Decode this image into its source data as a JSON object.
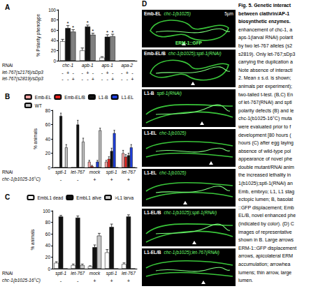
{
  "chart_data": [
    {
      "panel": "A",
      "type": "bar",
      "y_label": "% Polarity phenotype",
      "category_label": "RNAi",
      "categories": [
        "chc-1",
        "apb-1",
        "aps-1",
        "apa-2"
      ],
      "series": [
        {
          "color": "#ffffff",
          "values": [
            38,
            20,
            6,
            0
          ],
          "errors": [
            4,
            5,
            2,
            0
          ],
          "annotations": [
            null,
            null,
            null,
            null
          ]
        },
        {
          "color": "#111111",
          "values": [
            64,
            67,
            47,
            0
          ],
          "errors": [
            5,
            3,
            4,
            0
          ],
          "annotations": [
            "*",
            "*",
            "*",
            null
          ]
        },
        {
          "color": "#7f7f7f",
          "values": [
            57,
            51,
            48,
            0
          ],
          "errors": [
            4,
            3,
            4,
            0
          ],
          "annotations": [
            "*",
            "*",
            "*",
            null
          ]
        }
      ],
      "rows": [
        {
          "label": "let-767(s2176)/sDp3",
          "series_marks": [
            "-",
            "+",
            "-"
          ]
        },
        {
          "label": "let-767(s2819)/sDp3",
          "series_marks": [
            "-",
            "-",
            "+"
          ]
        }
      ],
      "ylim": [
        0,
        100
      ],
      "yticks": [
        0,
        20,
        40,
        60,
        80,
        100
      ],
      "grid": false
    },
    {
      "panel": "B",
      "type": "bar",
      "y_label": "% animals",
      "category_label": "RNAi",
      "categories": [
        "sptl-1",
        "let-767",
        "mock",
        "sptl-1",
        "let-767"
      ],
      "series": [
        {
          "name": "Emb-EL",
          "color": "#f4a3a3",
          "values": [
            0,
            0,
            8,
            8,
            20
          ],
          "errors": [
            0,
            0,
            2,
            2,
            4
          ]
        },
        {
          "name": "Emb-EL/B",
          "color": "#e3231f",
          "values": [
            0,
            0,
            2,
            12,
            15
          ],
          "errors": [
            0,
            0,
            1,
            3,
            3
          ]
        },
        {
          "name": "L1-B",
          "color": "#111111",
          "values": [
            72,
            60,
            0,
            23,
            17
          ],
          "errors": [
            4,
            6,
            0,
            4,
            3
          ]
        },
        {
          "name": "L1-EL",
          "color": "#1f3fdc",
          "values": [
            0,
            0,
            8,
            48,
            28
          ],
          "errors": [
            0,
            0,
            2,
            4,
            4
          ]
        },
        {
          "name": "WT",
          "color": "#bdbdbd",
          "values": [
            28,
            36,
            52,
            0,
            0
          ],
          "errors": [
            4,
            5,
            3,
            0,
            0
          ]
        }
      ],
      "rows": [
        {
          "label": "chc-1(b1025-16°C)",
          "category_marks": [
            "-",
            "-",
            "+",
            "+",
            "+"
          ]
        }
      ],
      "legend": "top-right",
      "ylim": [
        0,
        80
      ],
      "yticks": [
        0,
        20,
        40,
        60,
        80
      ],
      "grid": false
    },
    {
      "panel": "C",
      "type": "bar",
      "y_label": "% animals",
      "category_label": "RNAi",
      "categories": [
        "sptl-1",
        "let-767",
        "mock",
        "sptl-1",
        "let-767"
      ],
      "series": [
        {
          "name": "EmbL1 dead",
          "color": "#ffffff",
          "values": [
            10,
            6,
            4,
            28,
            8
          ],
          "errors": [
            2,
            2,
            1,
            5,
            2
          ]
        },
        {
          "name": "EmbL1 alive",
          "color": "#111111",
          "values": [
            90,
            88,
            37,
            72,
            90
          ],
          "errors": [
            2,
            3,
            4,
            5,
            3
          ]
        },
        {
          "name": ">L1 larva",
          "color": "#c8c8c8",
          "values": [
            0,
            6,
            57,
            0,
            0
          ],
          "errors": [
            0,
            2,
            4,
            0,
            0
          ]
        }
      ],
      "rows": [
        {
          "label": "chc-1(b1025-16°C)",
          "category_marks": [
            "-",
            "-",
            "+",
            "+",
            "+"
          ]
        }
      ],
      "legend": "top-right",
      "ylim": [
        0,
        100
      ],
      "yticks": [
        0,
        20,
        40,
        60,
        80,
        100
      ],
      "grid": false
    }
  ],
  "panel_d": {
    "panel": "D",
    "stain": "ERM-1::GFP",
    "scale": "5µm",
    "images": [
      {
        "label": "Emb-EL",
        "genotype": "chc-1(b1025)"
      },
      {
        "label": "Emb-EL/B",
        "genotype": "chc-1(b1025);sptl-1(RNAi)"
      },
      {
        "label": "L1-B",
        "genotype": "sptl-1(RNAi)"
      },
      {
        "label": "L1-EL",
        "genotype": "chc-1(b1025)"
      },
      {
        "label": "L1-EL",
        "genotype": "chc-1(b1025)"
      },
      {
        "label": "L1-EL/B",
        "genotype": "chc-1(b1025);sptl-1(RNAi)"
      },
      {
        "label": "L1-EL/B",
        "genotype": "chc-1(b1025);let-767(RNAi)"
      }
    ]
  },
  "caption": {
    "heading": [
      "Fig. 5. Genetic interact",
      "between clathrin/AP-1",
      "biosynthetic enzymes."
    ],
    "body": [
      "enhancement of chc-1, a",
      "aps-1(larval RNAi) polarit",
      "by two let-767 alleles (s2",
      "s2819). Only let-767;sDp3",
      "carrying the duplication a",
      "Note absence of interacti",
      "2. Mean ± s.d. is shown;",
      "animals per experiment);",
      "two-tailed t-test. (B,C) En",
      "of let-767(RNAi) and sptl",
      "polarity defects (B) and le",
      "chc-1(b1025-16°C) muta",
      "were evaluated prior to f",
      "development [80 hours (",
      "hours (C) after egg laying",
      "absence of wild-type pol",
      "appearance of novel phe",
      "double mutant/RNAi anim",
      "the increased lethality in",
      "1(b1025);sptl-1(RNAi) an",
      "Emb, embryo; L1, L1 stag",
      "ectopic lumen; B, basolat",
      "::GFP displacement; Emb",
      "EL/B, novel enhanced phe",
      "(indicated by color). (D) C",
      "images of representative",
      "shown in B. Large arrows",
      "ERM-1::GFP displacement",
      "arrows, apicolateral ERM",
      "accumulation; arrowhea",
      "lumens; thin arrow, large",
      "lumen."
    ]
  }
}
